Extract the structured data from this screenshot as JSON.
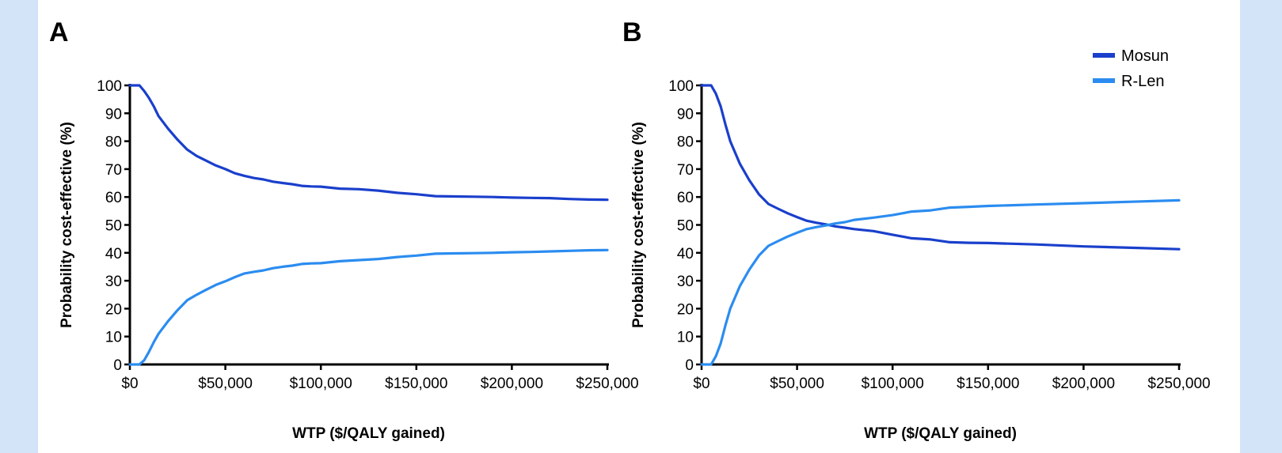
{
  "colors": {
    "background": "#d3e3f8",
    "panel": "#ffffff",
    "mosun": "#1a3fcc",
    "rlen": "#2b8cf0"
  },
  "chart_data": [
    {
      "type": "line",
      "panel_label": "A",
      "xlabel": "WTP ($/QALY gained)",
      "ylabel": "Probability cost-effective (%)",
      "xlim": [
        0,
        250000
      ],
      "ylim": [
        0,
        100
      ],
      "x_ticks": [
        0,
        50000,
        100000,
        150000,
        200000,
        250000
      ],
      "x_tick_labels": [
        "$0",
        "$50,000",
        "$100,000",
        "$150,000",
        "$200,000",
        "$250,000"
      ],
      "y_ticks": [
        0,
        10,
        20,
        30,
        40,
        50,
        60,
        70,
        80,
        90,
        100
      ],
      "y_tick_labels": [
        "0",
        "10",
        "20",
        "30",
        "40",
        "50",
        "60",
        "70",
        "80",
        "90",
        "100"
      ],
      "grid": false,
      "legend": null,
      "series": [
        {
          "color": "#1a3fcc",
          "x": [
            0,
            5000,
            7500,
            10000,
            12500,
            15000,
            20000,
            25000,
            30000,
            35000,
            40000,
            45000,
            50000,
            55000,
            60000,
            65000,
            70000,
            75000,
            80000,
            85000,
            90000,
            95000,
            100000,
            110000,
            120000,
            130000,
            140000,
            150000,
            160000,
            170000,
            180000,
            190000,
            200000,
            210000,
            220000,
            230000,
            240000,
            250000
          ],
          "y": [
            100,
            100,
            98,
            95.5,
            92.5,
            89,
            84.5,
            80.5,
            77,
            74.7,
            73,
            71.3,
            70,
            68.5,
            67.6,
            66.8,
            66.3,
            65.5,
            65,
            64.6,
            64,
            63.8,
            63.7,
            63,
            62.8,
            62.3,
            61.5,
            61,
            60.3,
            60.2,
            60.1,
            60,
            59.8,
            59.7,
            59.6,
            59.3,
            59.1,
            59
          ]
        },
        {
          "color": "#2b8cf0",
          "x": [
            0,
            5000,
            7500,
            10000,
            12500,
            15000,
            20000,
            25000,
            30000,
            35000,
            40000,
            45000,
            50000,
            55000,
            60000,
            65000,
            70000,
            75000,
            80000,
            85000,
            90000,
            95000,
            100000,
            110000,
            120000,
            130000,
            140000,
            150000,
            160000,
            170000,
            180000,
            190000,
            200000,
            210000,
            220000,
            230000,
            240000,
            250000
          ],
          "y": [
            0,
            0,
            1.5,
            4.5,
            8,
            11,
            15.5,
            19.5,
            23,
            25,
            26.8,
            28.5,
            29.8,
            31.3,
            32.6,
            33.2,
            33.7,
            34.5,
            35,
            35.4,
            36,
            36.2,
            36.3,
            37,
            37.4,
            37.8,
            38.5,
            39,
            39.7,
            39.8,
            39.9,
            40,
            40.2,
            40.3,
            40.5,
            40.7,
            40.9,
            41
          ]
        }
      ]
    },
    {
      "type": "line",
      "panel_label": "B",
      "xlabel": "WTP ($/QALY gained)",
      "ylabel": "Probability cost-effective (%)",
      "xlim": [
        0,
        250000
      ],
      "ylim": [
        0,
        100
      ],
      "x_ticks": [
        0,
        50000,
        100000,
        150000,
        200000,
        250000
      ],
      "x_tick_labels": [
        "$0",
        "$50,000",
        "$100,000",
        "$150,000",
        "$200,000",
        "$250,000"
      ],
      "y_ticks": [
        0,
        10,
        20,
        30,
        40,
        50,
        60,
        70,
        80,
        90,
        100
      ],
      "y_tick_labels": [
        "0",
        "10",
        "20",
        "30",
        "40",
        "50",
        "60",
        "70",
        "80",
        "90",
        "100"
      ],
      "grid": false,
      "legend": "top-right",
      "series": [
        {
          "name": "Mosun",
          "color": "#1a3fcc",
          "x": [
            0,
            5000,
            7500,
            10000,
            12500,
            15000,
            20000,
            25000,
            30000,
            35000,
            40000,
            45000,
            50000,
            55000,
            60000,
            65000,
            70000,
            75000,
            80000,
            90000,
            100000,
            110000,
            120000,
            130000,
            140000,
            150000,
            175000,
            200000,
            225000,
            250000
          ],
          "y": [
            100,
            100,
            97,
            92.5,
            86,
            80,
            72,
            66,
            61,
            57.5,
            55.8,
            54.2,
            52.8,
            51.5,
            50.8,
            50.2,
            49.5,
            49,
            48.5,
            47.8,
            46.5,
            45.2,
            44.8,
            43.8,
            43.6,
            43.5,
            43,
            42.3,
            41.8,
            41.3
          ]
        },
        {
          "name": "R-Len",
          "color": "#2b8cf0",
          "x": [
            0,
            5000,
            7500,
            10000,
            12500,
            15000,
            20000,
            25000,
            30000,
            35000,
            40000,
            45000,
            50000,
            55000,
            60000,
            65000,
            70000,
            75000,
            80000,
            90000,
            100000,
            110000,
            120000,
            130000,
            140000,
            150000,
            175000,
            200000,
            225000,
            250000
          ],
          "y": [
            0,
            0,
            3,
            7.5,
            14,
            20,
            28,
            34,
            39,
            42.5,
            44.2,
            45.8,
            47.2,
            48.5,
            49.2,
            49.8,
            50.5,
            51,
            51.8,
            52.6,
            53.5,
            54.8,
            55.2,
            56.2,
            56.5,
            56.8,
            57.3,
            57.8,
            58.3,
            58.8
          ]
        }
      ]
    }
  ]
}
